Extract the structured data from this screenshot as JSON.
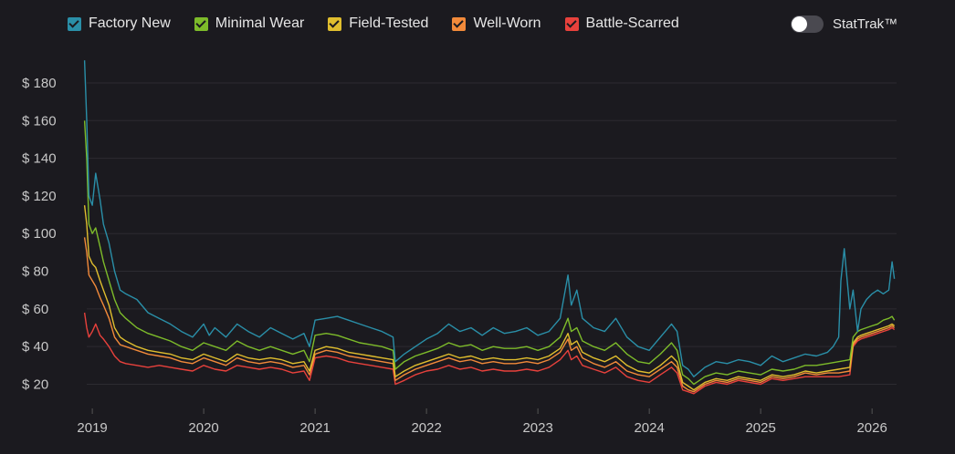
{
  "legend": [
    {
      "label": "Factory New",
      "color": "#2a8fa8"
    },
    {
      "label": "Minimal Wear",
      "color": "#7dbb2a"
    },
    {
      "label": "Field-Tested",
      "color": "#e0be2e"
    },
    {
      "label": "Well-Worn",
      "color": "#f28a3a"
    },
    {
      "label": "Battle-Scarred",
      "color": "#e8413c"
    }
  ],
  "toggle": {
    "label": "StatTrak™",
    "on": false
  },
  "chart_data": {
    "type": "line",
    "title": "",
    "xlabel": "",
    "ylabel": "",
    "xlim": [
      2018.95,
      2026.22
    ],
    "ylim": [
      12,
      195
    ],
    "yticks": [
      20,
      40,
      60,
      80,
      100,
      120,
      140,
      160,
      180
    ],
    "ytick_labels": [
      "$ 20",
      "$ 40",
      "$ 60",
      "$ 80",
      "$ 100",
      "$ 120",
      "$ 140",
      "$ 160",
      "$ 180"
    ],
    "xticks": [
      2019,
      2020,
      2021,
      2022,
      2023,
      2024,
      2025,
      2026
    ],
    "xtick_labels": [
      "2019",
      "2020",
      "2021",
      "2022",
      "2023",
      "2024",
      "2025",
      "2026"
    ],
    "grid": true,
    "legend_position": "top",
    "series": [
      {
        "name": "Factory New",
        "color": "#2a8fa8",
        "x": [
          2018.93,
          2018.95,
          2018.97,
          2019.0,
          2019.03,
          2019.07,
          2019.1,
          2019.15,
          2019.2,
          2019.25,
          2019.3,
          2019.4,
          2019.5,
          2019.6,
          2019.7,
          2019.8,
          2019.9,
          2020.0,
          2020.05,
          2020.1,
          2020.2,
          2020.3,
          2020.4,
          2020.5,
          2020.6,
          2020.7,
          2020.8,
          2020.9,
          2020.95,
          2021.0,
          2021.1,
          2021.2,
          2021.3,
          2021.4,
          2021.5,
          2021.6,
          2021.7,
          2021.72,
          2021.8,
          2021.9,
          2022.0,
          2022.1,
          2022.2,
          2022.3,
          2022.4,
          2022.5,
          2022.6,
          2022.7,
          2022.8,
          2022.9,
          2023.0,
          2023.1,
          2023.2,
          2023.27,
          2023.3,
          2023.35,
          2023.4,
          2023.5,
          2023.6,
          2023.7,
          2023.8,
          2023.9,
          2024.0,
          2024.1,
          2024.2,
          2024.25,
          2024.3,
          2024.35,
          2024.4,
          2024.5,
          2024.6,
          2024.7,
          2024.8,
          2024.9,
          2025.0,
          2025.1,
          2025.2,
          2025.3,
          2025.4,
          2025.5,
          2025.6,
          2025.65,
          2025.7,
          2025.72,
          2025.75,
          2025.8,
          2025.83,
          2025.87,
          2025.9,
          2025.95,
          2026.0,
          2026.05,
          2026.1,
          2026.15,
          2026.18,
          2026.2
        ],
        "values": [
          192,
          160,
          120,
          115,
          132,
          118,
          105,
          95,
          80,
          70,
          68,
          65,
          58,
          55,
          52,
          48,
          45,
          52,
          46,
          50,
          45,
          52,
          48,
          45,
          50,
          47,
          44,
          47,
          40,
          54,
          55,
          56,
          54,
          52,
          50,
          48,
          45,
          32,
          36,
          40,
          44,
          47,
          52,
          48,
          50,
          46,
          50,
          47,
          48,
          50,
          46,
          48,
          55,
          78,
          62,
          70,
          55,
          50,
          48,
          55,
          45,
          40,
          38,
          45,
          52,
          48,
          30,
          28,
          24,
          29,
          32,
          31,
          33,
          32,
          30,
          35,
          32,
          34,
          36,
          35,
          37,
          40,
          45,
          75,
          92,
          60,
          70,
          48,
          60,
          65,
          68,
          70,
          68,
          70,
          85,
          76
        ]
      },
      {
        "name": "Minimal Wear",
        "color": "#7dbb2a",
        "x": [
          2018.93,
          2018.95,
          2018.97,
          2019.0,
          2019.03,
          2019.07,
          2019.1,
          2019.15,
          2019.2,
          2019.25,
          2019.3,
          2019.4,
          2019.5,
          2019.6,
          2019.7,
          2019.8,
          2019.9,
          2020.0,
          2020.1,
          2020.2,
          2020.3,
          2020.4,
          2020.5,
          2020.6,
          2020.7,
          2020.8,
          2020.9,
          2020.95,
          2021.0,
          2021.1,
          2021.2,
          2021.3,
          2021.4,
          2021.5,
          2021.6,
          2021.7,
          2021.72,
          2021.8,
          2021.9,
          2022.0,
          2022.1,
          2022.2,
          2022.3,
          2022.4,
          2022.5,
          2022.6,
          2022.7,
          2022.8,
          2022.9,
          2023.0,
          2023.1,
          2023.2,
          2023.27,
          2023.3,
          2023.35,
          2023.4,
          2023.5,
          2023.6,
          2023.7,
          2023.8,
          2023.9,
          2024.0,
          2024.1,
          2024.2,
          2024.25,
          2024.3,
          2024.35,
          2024.4,
          2024.5,
          2024.6,
          2024.7,
          2024.8,
          2024.9,
          2025.0,
          2025.1,
          2025.2,
          2025.3,
          2025.4,
          2025.5,
          2025.6,
          2025.7,
          2025.8,
          2025.83,
          2025.87,
          2025.9,
          2025.95,
          2026.0,
          2026.05,
          2026.1,
          2026.15,
          2026.18,
          2026.2
        ],
        "values": [
          160,
          140,
          105,
          100,
          103,
          93,
          85,
          75,
          65,
          58,
          55,
          50,
          47,
          45,
          43,
          40,
          38,
          42,
          40,
          38,
          43,
          40,
          38,
          40,
          38,
          36,
          38,
          32,
          46,
          47,
          46,
          44,
          42,
          41,
          40,
          38,
          28,
          32,
          35,
          37,
          39,
          42,
          40,
          41,
          38,
          40,
          39,
          39,
          40,
          38,
          40,
          45,
          55,
          48,
          50,
          43,
          40,
          38,
          42,
          36,
          32,
          31,
          36,
          42,
          38,
          25,
          23,
          20,
          24,
          26,
          25,
          27,
          26,
          25,
          28,
          27,
          28,
          30,
          30,
          31,
          32,
          33,
          45,
          48,
          49,
          50,
          51,
          52,
          54,
          55,
          56,
          54
        ]
      },
      {
        "name": "Field-Tested",
        "color": "#e0be2e",
        "x": [
          2018.93,
          2018.95,
          2018.97,
          2019.0,
          2019.03,
          2019.07,
          2019.1,
          2019.15,
          2019.2,
          2019.25,
          2019.3,
          2019.4,
          2019.5,
          2019.6,
          2019.7,
          2019.8,
          2019.9,
          2020.0,
          2020.1,
          2020.2,
          2020.3,
          2020.4,
          2020.5,
          2020.6,
          2020.7,
          2020.8,
          2020.9,
          2020.95,
          2021.0,
          2021.1,
          2021.2,
          2021.3,
          2021.4,
          2021.5,
          2021.6,
          2021.7,
          2021.72,
          2021.8,
          2021.9,
          2022.0,
          2022.1,
          2022.2,
          2022.3,
          2022.4,
          2022.5,
          2022.6,
          2022.7,
          2022.8,
          2022.9,
          2023.0,
          2023.1,
          2023.2,
          2023.27,
          2023.3,
          2023.35,
          2023.4,
          2023.5,
          2023.6,
          2023.7,
          2023.8,
          2023.9,
          2024.0,
          2024.1,
          2024.2,
          2024.25,
          2024.3,
          2024.35,
          2024.4,
          2024.5,
          2024.6,
          2024.7,
          2024.8,
          2024.9,
          2025.0,
          2025.1,
          2025.2,
          2025.3,
          2025.4,
          2025.5,
          2025.6,
          2025.7,
          2025.8,
          2025.83,
          2025.87,
          2025.9,
          2025.95,
          2026.0,
          2026.05,
          2026.1,
          2026.15,
          2026.18,
          2026.2
        ],
        "values": [
          115,
          105,
          88,
          84,
          82,
          75,
          70,
          62,
          50,
          45,
          43,
          40,
          38,
          37,
          36,
          34,
          33,
          36,
          34,
          32,
          36,
          34,
          33,
          34,
          33,
          31,
          32,
          27,
          38,
          40,
          39,
          37,
          36,
          35,
          34,
          33,
          24,
          27,
          30,
          32,
          34,
          36,
          34,
          35,
          33,
          34,
          33,
          33,
          34,
          33,
          35,
          39,
          47,
          41,
          43,
          37,
          34,
          32,
          35,
          30,
          27,
          26,
          30,
          35,
          32,
          21,
          19,
          17,
          21,
          23,
          22,
          24,
          23,
          22,
          25,
          24,
          25,
          27,
          26,
          27,
          28,
          29,
          42,
          45,
          46,
          47,
          48,
          49,
          50,
          51,
          52,
          51
        ]
      },
      {
        "name": "Well-Worn",
        "color": "#f28a3a",
        "x": [
          2018.93,
          2018.95,
          2018.97,
          2019.0,
          2019.03,
          2019.07,
          2019.1,
          2019.15,
          2019.2,
          2019.25,
          2019.3,
          2019.4,
          2019.5,
          2019.6,
          2019.7,
          2019.8,
          2019.9,
          2020.0,
          2020.1,
          2020.2,
          2020.3,
          2020.4,
          2020.5,
          2020.6,
          2020.7,
          2020.8,
          2020.9,
          2020.95,
          2021.0,
          2021.1,
          2021.2,
          2021.3,
          2021.4,
          2021.5,
          2021.6,
          2021.7,
          2021.72,
          2021.8,
          2021.9,
          2022.0,
          2022.1,
          2022.2,
          2022.3,
          2022.4,
          2022.5,
          2022.6,
          2022.7,
          2022.8,
          2022.9,
          2023.0,
          2023.1,
          2023.2,
          2023.27,
          2023.3,
          2023.35,
          2023.4,
          2023.5,
          2023.6,
          2023.7,
          2023.8,
          2023.9,
          2024.0,
          2024.1,
          2024.2,
          2024.25,
          2024.3,
          2024.35,
          2024.4,
          2024.5,
          2024.6,
          2024.7,
          2024.8,
          2024.9,
          2025.0,
          2025.1,
          2025.2,
          2025.3,
          2025.4,
          2025.5,
          2025.6,
          2025.7,
          2025.8,
          2025.83,
          2025.87,
          2025.9,
          2025.95,
          2026.0,
          2026.05,
          2026.1,
          2026.15,
          2026.18,
          2026.2
        ],
        "values": [
          98,
          90,
          78,
          75,
          72,
          66,
          62,
          55,
          45,
          41,
          40,
          38,
          36,
          35,
          34,
          32,
          31,
          34,
          32,
          30,
          34,
          32,
          31,
          32,
          31,
          29,
          30,
          25,
          36,
          38,
          37,
          35,
          34,
          33,
          32,
          31,
          22,
          25,
          28,
          30,
          32,
          34,
          32,
          33,
          31,
          32,
          31,
          31,
          32,
          31,
          33,
          37,
          44,
          38,
          40,
          34,
          31,
          29,
          32,
          27,
          25,
          24,
          28,
          32,
          29,
          19,
          17,
          16,
          20,
          22,
          21,
          23,
          22,
          21,
          24,
          23,
          24,
          26,
          25,
          26,
          26,
          27,
          41,
          44,
          45,
          46,
          47,
          48,
          49,
          50,
          51,
          50
        ]
      },
      {
        "name": "Battle-Scarred",
        "color": "#e8413c",
        "x": [
          2018.93,
          2018.95,
          2018.97,
          2019.0,
          2019.03,
          2019.07,
          2019.1,
          2019.15,
          2019.2,
          2019.25,
          2019.3,
          2019.4,
          2019.5,
          2019.6,
          2019.7,
          2019.8,
          2019.9,
          2020.0,
          2020.1,
          2020.2,
          2020.3,
          2020.4,
          2020.5,
          2020.6,
          2020.7,
          2020.8,
          2020.9,
          2020.95,
          2021.0,
          2021.1,
          2021.2,
          2021.3,
          2021.4,
          2021.5,
          2021.6,
          2021.7,
          2021.72,
          2021.8,
          2021.9,
          2022.0,
          2022.1,
          2022.2,
          2022.3,
          2022.4,
          2022.5,
          2022.6,
          2022.7,
          2022.8,
          2022.9,
          2023.0,
          2023.1,
          2023.2,
          2023.27,
          2023.3,
          2023.35,
          2023.4,
          2023.5,
          2023.6,
          2023.7,
          2023.8,
          2023.9,
          2024.0,
          2024.1,
          2024.2,
          2024.25,
          2024.3,
          2024.35,
          2024.4,
          2024.5,
          2024.6,
          2024.7,
          2024.8,
          2024.9,
          2025.0,
          2025.1,
          2025.2,
          2025.3,
          2025.4,
          2025.5,
          2025.6,
          2025.7,
          2025.8,
          2025.83,
          2025.87,
          2025.9,
          2025.95,
          2026.0,
          2026.05,
          2026.1,
          2026.15,
          2026.18,
          2026.2
        ],
        "values": [
          58,
          50,
          45,
          48,
          52,
          46,
          44,
          40,
          35,
          32,
          31,
          30,
          29,
          30,
          29,
          28,
          27,
          30,
          28,
          27,
          30,
          29,
          28,
          29,
          28,
          26,
          27,
          22,
          34,
          35,
          34,
          32,
          31,
          30,
          29,
          28,
          20,
          22,
          25,
          27,
          28,
          30,
          28,
          29,
          27,
          28,
          27,
          27,
          28,
          27,
          29,
          33,
          38,
          33,
          35,
          30,
          28,
          26,
          29,
          24,
          22,
          21,
          25,
          29,
          26,
          17,
          16,
          15,
          19,
          21,
          20,
          22,
          21,
          20,
          23,
          22,
          23,
          24,
          24,
          24,
          24,
          25,
          40,
          43,
          44,
          45,
          46,
          47,
          48,
          49,
          50,
          49
        ]
      }
    ]
  }
}
